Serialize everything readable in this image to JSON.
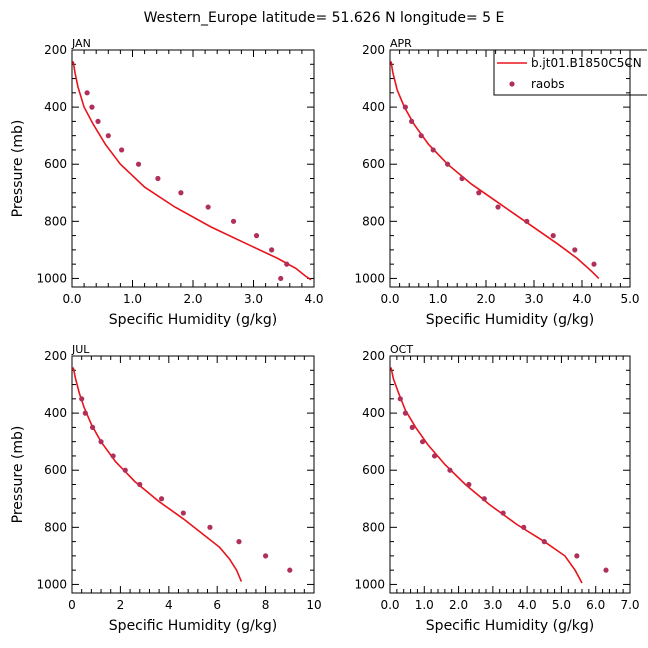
{
  "figure": {
    "title": "Western_Europe  latitude= 51.626 N longitude= 5 E",
    "legend": {
      "model_label": "b.jt01.B1850C5CN",
      "obs_label": "raobs",
      "model_color": "#e8141c",
      "obs_color": "#b0305a"
    }
  },
  "chart_data": [
    {
      "type": "line",
      "panel_label": "JAN",
      "xlabel": "Specific Humidity (g/kg)",
      "ylabel": "Pressure (mb)",
      "xlim": [
        0,
        4
      ],
      "ylim": [
        1030,
        200
      ],
      "xticks": [
        0,
        1,
        2,
        3,
        4
      ],
      "xtick_labels": [
        "0.0",
        "1.0",
        "2.0",
        "3.0",
        "4.0"
      ],
      "yticks": [
        200,
        400,
        600,
        800,
        1000
      ],
      "ytick_labels": [
        "200",
        "400",
        "600",
        "800",
        "1000"
      ],
      "series": [
        {
          "name": "b.jt01.B1850C5CN",
          "kind": "line",
          "x": [
            0.02,
            0.05,
            0.1,
            0.2,
            0.35,
            0.55,
            0.8,
            1.2,
            1.7,
            2.3,
            2.9,
            3.4,
            3.7,
            3.85,
            3.95
          ],
          "y": [
            240,
            280,
            330,
            400,
            460,
            530,
            600,
            680,
            750,
            820,
            880,
            930,
            965,
            990,
            1005
          ]
        },
        {
          "name": "raobs",
          "kind": "scatter",
          "x": [
            0.25,
            0.33,
            0.43,
            0.6,
            0.82,
            1.1,
            1.42,
            1.8,
            2.25,
            2.67,
            3.05,
            3.3,
            3.55,
            3.45
          ],
          "y": [
            350,
            400,
            450,
            500,
            550,
            600,
            650,
            700,
            750,
            800,
            850,
            900,
            950,
            1000
          ]
        }
      ]
    },
    {
      "type": "line",
      "panel_label": "APR",
      "xlabel": "Specific Humidity (g/kg)",
      "ylabel": "",
      "xlim": [
        0,
        5
      ],
      "ylim": [
        1030,
        200
      ],
      "xticks": [
        0,
        1,
        2,
        3,
        4,
        5
      ],
      "xtick_labels": [
        "0.0",
        "1.0",
        "2.0",
        "3.0",
        "4.0",
        "5.0"
      ],
      "yticks": [
        200,
        400,
        600,
        800,
        1000
      ],
      "ytick_labels": [
        "200",
        "400",
        "600",
        "800",
        "1000"
      ],
      "series": [
        {
          "name": "b.jt01.B1850C5CN",
          "kind": "line",
          "x": [
            0.02,
            0.06,
            0.15,
            0.3,
            0.5,
            0.8,
            1.2,
            1.7,
            2.3,
            2.9,
            3.5,
            3.9,
            4.2,
            4.35
          ],
          "y": [
            240,
            280,
            340,
            400,
            460,
            530,
            600,
            670,
            740,
            810,
            880,
            930,
            975,
            1000
          ]
        },
        {
          "name": "raobs",
          "kind": "scatter",
          "x": [
            0.32,
            0.45,
            0.65,
            0.9,
            1.2,
            1.5,
            1.85,
            2.25,
            2.85,
            3.4,
            3.85,
            4.25
          ],
          "y": [
            400,
            450,
            500,
            550,
            600,
            650,
            700,
            750,
            800,
            850,
            900,
            950
          ]
        }
      ]
    },
    {
      "type": "line",
      "panel_label": "JUL",
      "xlabel": "Specific Humidity (g/kg)",
      "ylabel": "Pressure (mb)",
      "xlim": [
        0,
        10
      ],
      "ylim": [
        1030,
        200
      ],
      "xticks": [
        0,
        2,
        4,
        6,
        8,
        10
      ],
      "xtick_labels": [
        "0",
        "2",
        "4",
        "6",
        "8",
        "10"
      ],
      "yticks": [
        200,
        400,
        600,
        800,
        1000
      ],
      "ytick_labels": [
        "200",
        "400",
        "600",
        "800",
        "1000"
      ],
      "series": [
        {
          "name": "b.jt01.B1850C5CN",
          "kind": "line",
          "x": [
            0.05,
            0.15,
            0.3,
            0.5,
            0.8,
            1.2,
            1.8,
            2.6,
            3.6,
            4.6,
            5.5,
            6.1,
            6.5,
            6.8,
            7.0
          ],
          "y": [
            240,
            280,
            330,
            380,
            440,
            500,
            570,
            640,
            710,
            770,
            830,
            870,
            910,
            950,
            990
          ]
        },
        {
          "name": "raobs",
          "kind": "scatter",
          "x": [
            0.4,
            0.55,
            0.85,
            1.2,
            1.7,
            2.2,
            2.8,
            3.7,
            4.6,
            5.7,
            6.9,
            8.0,
            9.0
          ],
          "y": [
            350,
            400,
            450,
            500,
            550,
            600,
            650,
            700,
            750,
            800,
            850,
            900,
            950
          ]
        }
      ]
    },
    {
      "type": "line",
      "panel_label": "OCT",
      "xlabel": "Specific Humidity (g/kg)",
      "ylabel": "",
      "xlim": [
        0,
        7
      ],
      "ylim": [
        1030,
        200
      ],
      "xticks": [
        0,
        1,
        2,
        3,
        4,
        5,
        6,
        7
      ],
      "xtick_labels": [
        "0.0",
        "1.0",
        "2.0",
        "3.0",
        "4.0",
        "5.0",
        "6.0",
        "7.0"
      ],
      "yticks": [
        200,
        400,
        600,
        800,
        1000
      ],
      "ytick_labels": [
        "200",
        "400",
        "600",
        "800",
        "1000"
      ],
      "series": [
        {
          "name": "b.jt01.B1850C5CN",
          "kind": "line",
          "x": [
            0.03,
            0.1,
            0.25,
            0.45,
            0.75,
            1.1,
            1.6,
            2.2,
            2.9,
            3.7,
            4.5,
            5.1,
            5.4,
            5.6
          ],
          "y": [
            240,
            280,
            330,
            390,
            450,
            510,
            580,
            650,
            720,
            790,
            850,
            900,
            950,
            995
          ]
        },
        {
          "name": "raobs",
          "kind": "scatter",
          "x": [
            0.3,
            0.45,
            0.65,
            0.95,
            1.3,
            1.75,
            2.3,
            2.75,
            3.3,
            3.9,
            4.5,
            5.45,
            6.3
          ],
          "y": [
            350,
            400,
            450,
            500,
            550,
            600,
            650,
            700,
            750,
            800,
            850,
            900,
            950
          ]
        }
      ]
    }
  ]
}
